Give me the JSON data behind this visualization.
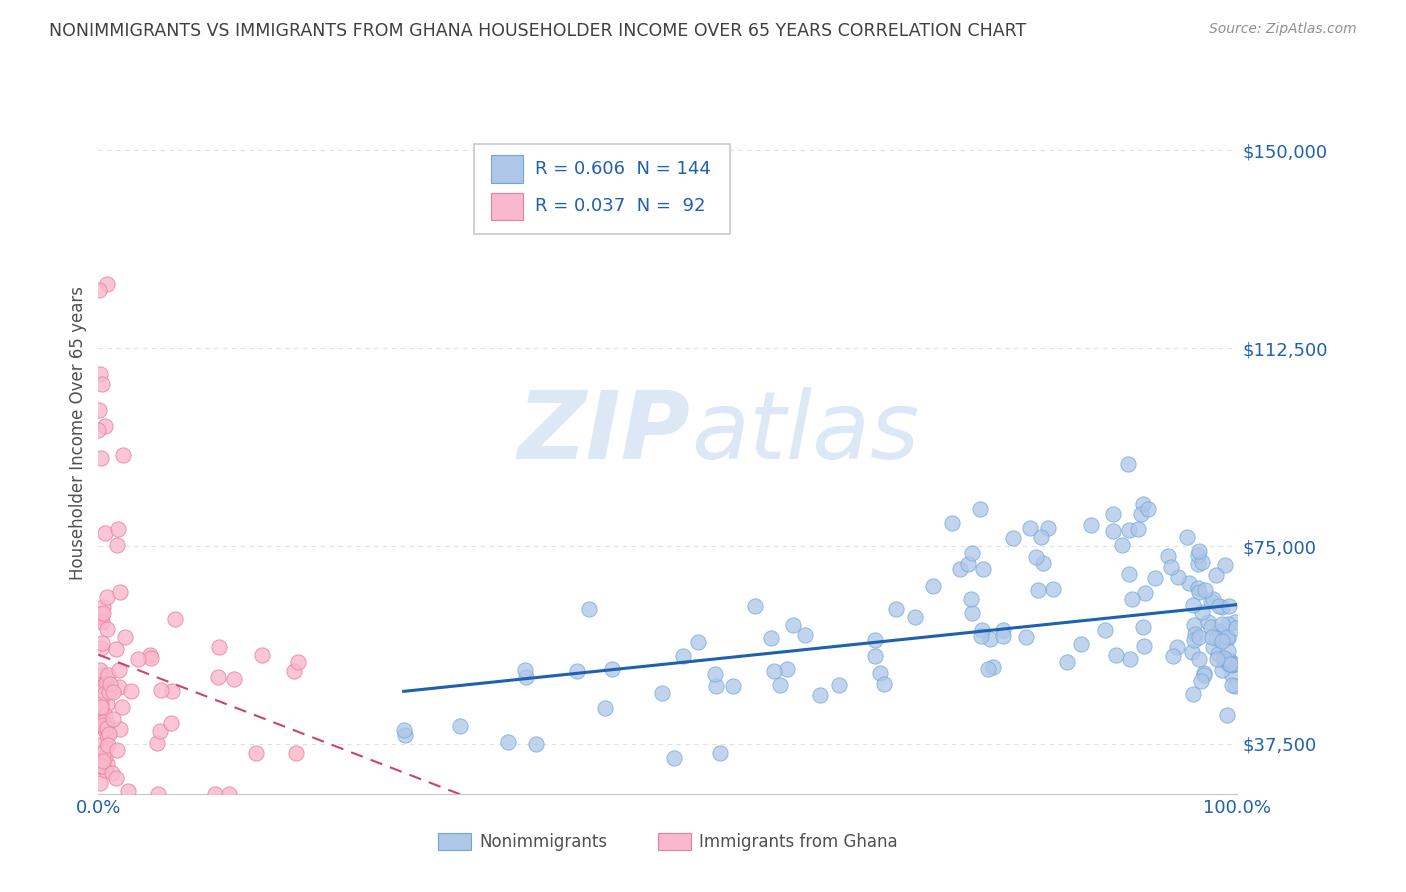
{
  "title": "NONIMMIGRANTS VS IMMIGRANTS FROM GHANA HOUSEHOLDER INCOME OVER 65 YEARS CORRELATION CHART",
  "source": "Source: ZipAtlas.com",
  "ylabel": "Householder Income Over 65 years",
  "xlim": [
    0,
    1
  ],
  "ylim": [
    28000,
    165000
  ],
  "yticks": [
    37500,
    75000,
    112500,
    150000
  ],
  "ytick_labels": [
    "$37,500",
    "$75,000",
    "$112,500",
    "$150,000"
  ],
  "xticks": [
    0,
    1
  ],
  "xtick_labels": [
    "0.0%",
    "100.0%"
  ],
  "legend_label1": "Nonimmigrants",
  "legend_label2": "Immigrants from Ghana",
  "R1": "0.606",
  "N1": "144",
  "R2": "0.037",
  "N2": "92",
  "blue_color": "#aec6e8",
  "blue_edge": "#6fa8d8",
  "pink_color": "#f9b8cb",
  "pink_edge": "#e88098",
  "trend_blue": "#2060b0",
  "trend_pink": "#cc4466",
  "watermark_color": "#dce8f5",
  "background_color": "#ffffff",
  "grid_color": "#e0e0e0",
  "title_color": "#404040",
  "source_color": "#909090",
  "axis_label_color": "#505050",
  "tick_color_blue": "#2060b0",
  "legend_border": "#c8c8d8",
  "figsize": [
    14.06,
    8.92
  ],
  "dpi": 100
}
